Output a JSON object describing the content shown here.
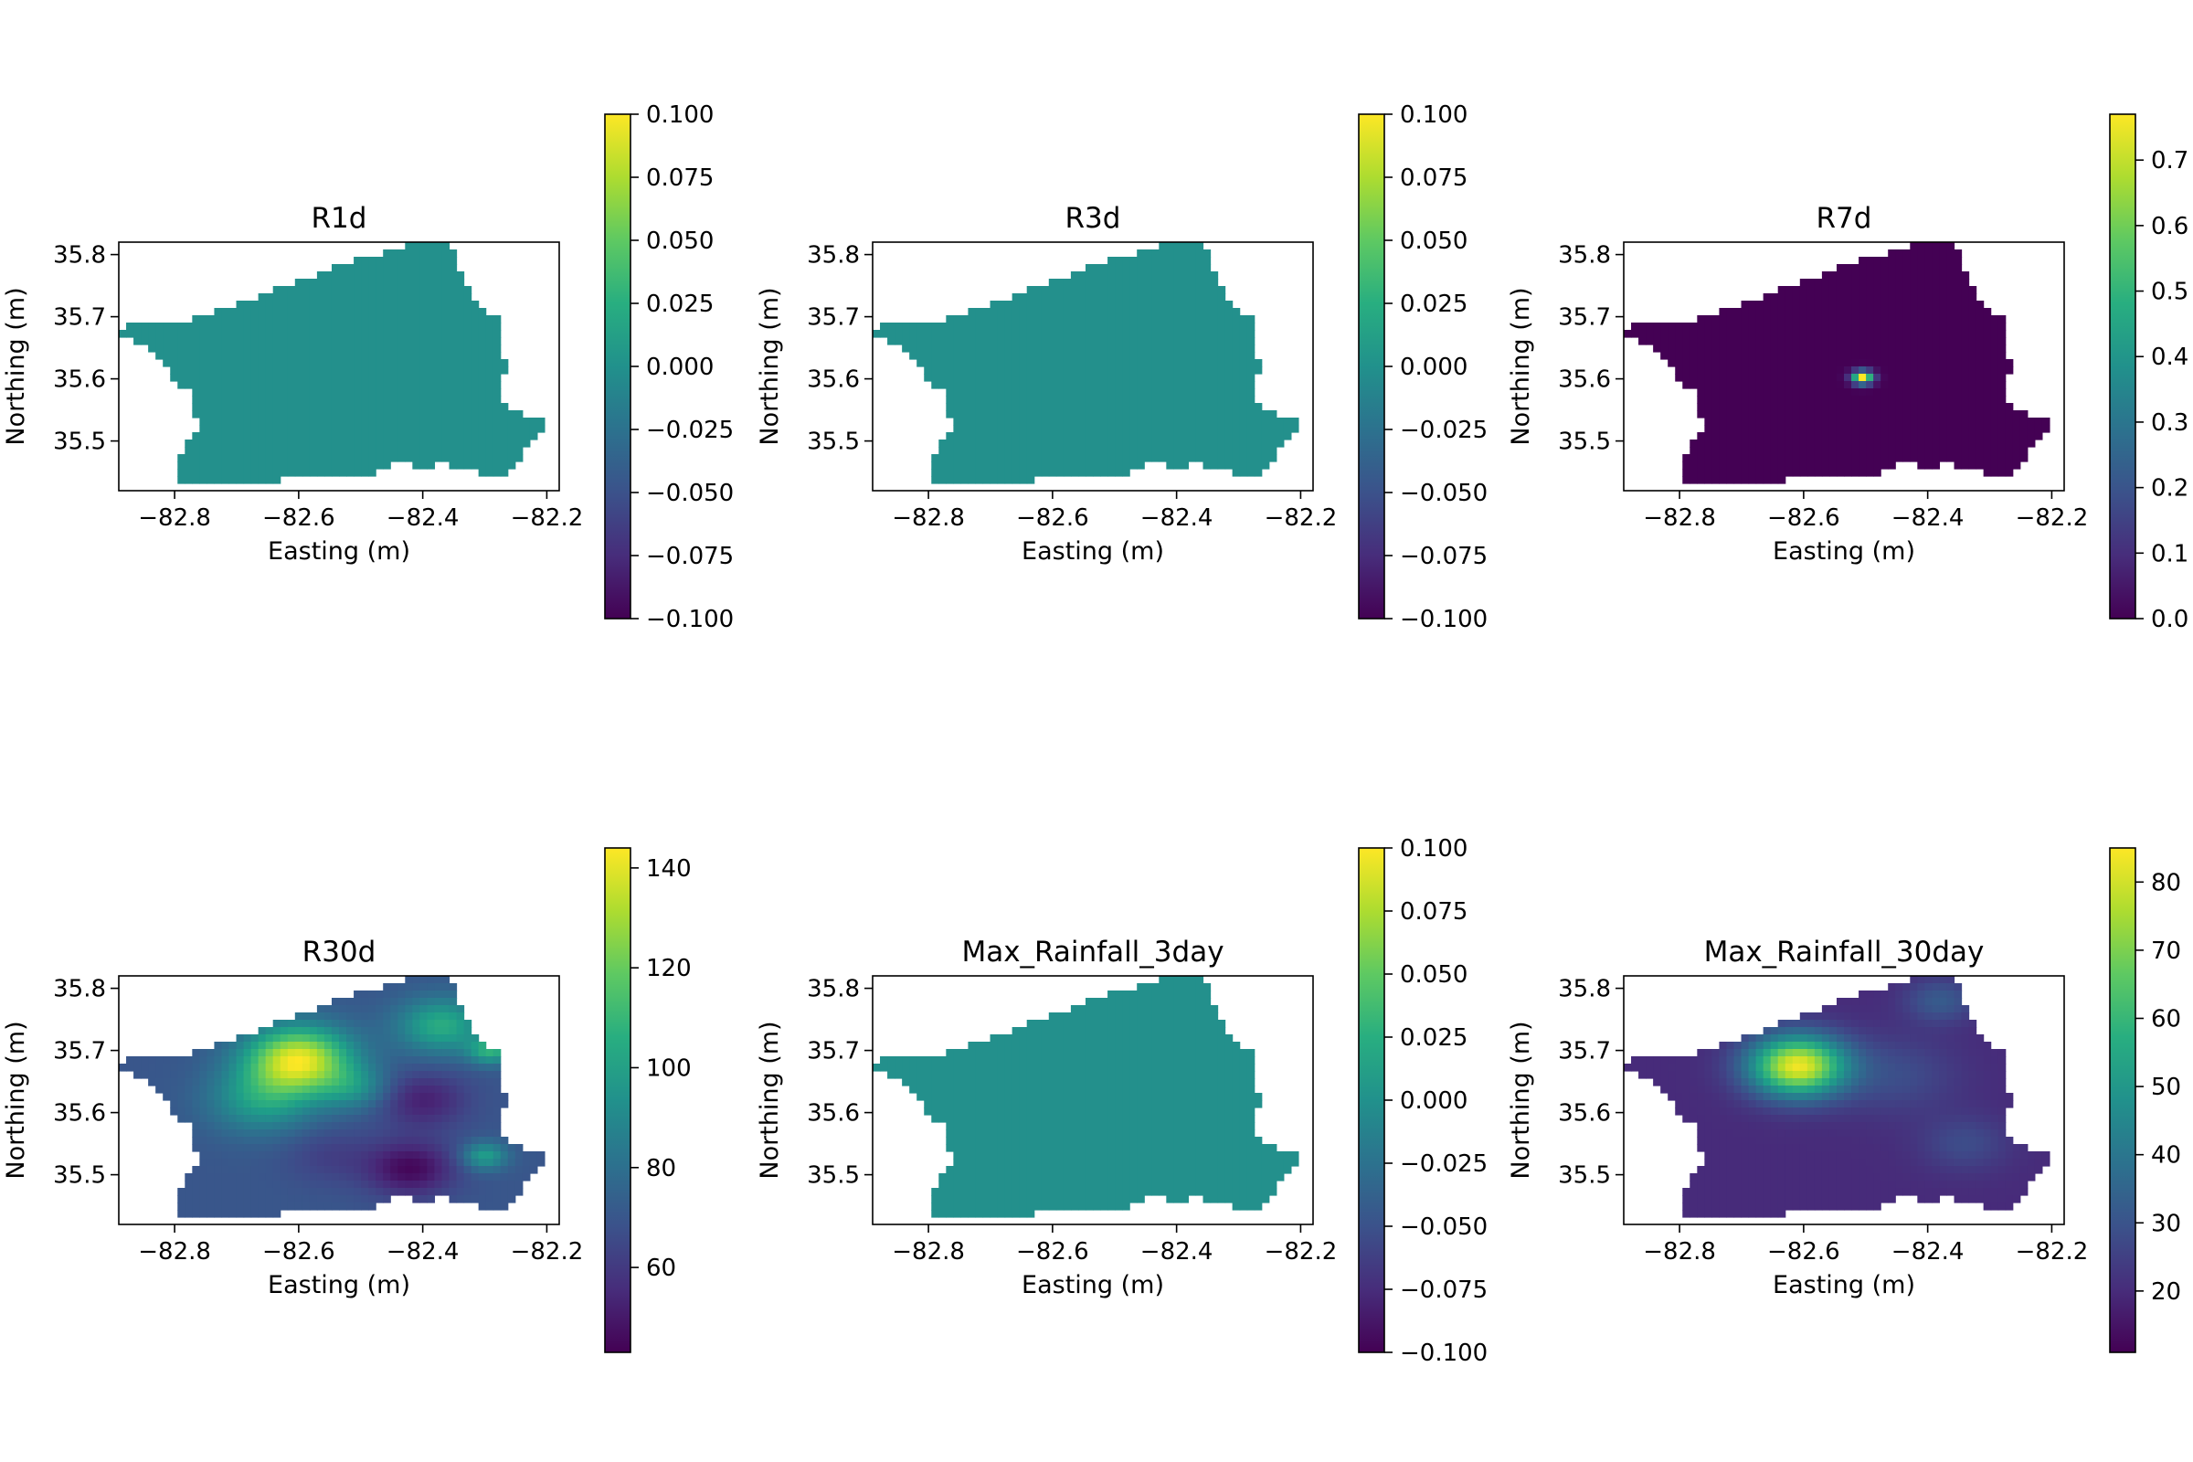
{
  "chart_data": [
    {
      "type": "heatmap",
      "title": "R1d",
      "xlabel": "Easting (m)",
      "ylabel": "Northing (m)",
      "xlim": [
        -82.89,
        -82.18
      ],
      "ylim": [
        35.42,
        35.82
      ],
      "x_ticks": [
        "−82.8",
        "−82.6",
        "−82.4",
        "−82.2"
      ],
      "y_ticks": [
        "35.5",
        "35.6",
        "35.7",
        "35.8"
      ],
      "colorbar": {
        "range": [
          -0.1,
          0.1
        ],
        "ticks": [
          "−0.100",
          "−0.075",
          "−0.050",
          "−0.025",
          "0.000",
          "0.025",
          "0.050",
          "0.075",
          "0.100"
        ]
      },
      "colormap": "viridis",
      "field": "uniform",
      "uniform_value": 0.0
    },
    {
      "type": "heatmap",
      "title": "R3d",
      "xlabel": "Easting (m)",
      "ylabel": "Northing (m)",
      "xlim": [
        -82.89,
        -82.18
      ],
      "ylim": [
        35.42,
        35.82
      ],
      "x_ticks": [
        "−82.8",
        "−82.6",
        "−82.4",
        "−82.2"
      ],
      "y_ticks": [
        "35.5",
        "35.6",
        "35.7",
        "35.8"
      ],
      "colorbar": {
        "range": [
          -0.1,
          0.1
        ],
        "ticks": [
          "−0.100",
          "−0.075",
          "−0.050",
          "−0.025",
          "0.000",
          "0.025",
          "0.050",
          "0.075",
          "0.100"
        ]
      },
      "colormap": "viridis",
      "field": "uniform",
      "uniform_value": 0.0
    },
    {
      "type": "heatmap",
      "title": "R7d",
      "xlabel": "Easting (m)",
      "ylabel": "Northing (m)",
      "xlim": [
        -82.89,
        -82.18
      ],
      "ylim": [
        35.42,
        35.82
      ],
      "x_ticks": [
        "−82.8",
        "−82.6",
        "−82.4",
        "−82.2"
      ],
      "y_ticks": [
        "35.5",
        "35.6",
        "35.7",
        "35.8"
      ],
      "colorbar": {
        "range": [
          0.0,
          0.77
        ],
        "ticks": [
          "0.0",
          "0.1",
          "0.2",
          "0.3",
          "0.4",
          "0.5",
          "0.6",
          "0.7"
        ]
      },
      "colormap": "viridis",
      "field": "peaks",
      "base": 0.0,
      "peaks": [
        {
          "x": -82.505,
          "y": 35.602,
          "value": 0.77,
          "radius": 0.012
        }
      ]
    },
    {
      "type": "heatmap",
      "title": "R30d",
      "xlabel": "Easting (m)",
      "ylabel": "Northing (m)",
      "xlim": [
        -82.89,
        -82.18
      ],
      "ylim": [
        35.42,
        35.82
      ],
      "x_ticks": [
        "−82.8",
        "−82.6",
        "−82.4",
        "−82.2"
      ],
      "y_ticks": [
        "35.5",
        "35.6",
        "35.7",
        "35.8"
      ],
      "colorbar": {
        "range": [
          43,
          144
        ],
        "ticks": [
          "60",
          "80",
          "100",
          "120",
          "140"
        ]
      },
      "colormap": "viridis",
      "field": "peaks",
      "base": 70,
      "peaks": [
        {
          "x": -82.6,
          "y": 35.685,
          "value": 70,
          "radius": 0.06
        },
        {
          "x": -82.66,
          "y": 35.62,
          "value": 28,
          "radius": 0.06
        },
        {
          "x": -82.37,
          "y": 35.74,
          "value": 35,
          "radius": 0.05
        },
        {
          "x": -82.29,
          "y": 35.7,
          "value": 35,
          "radius": 0.025
        },
        {
          "x": -82.51,
          "y": 35.64,
          "value": 20,
          "radius": 0.04
        },
        {
          "x": -82.42,
          "y": 35.51,
          "value": -25,
          "radius": 0.05
        },
        {
          "x": -82.4,
          "y": 35.62,
          "value": -18,
          "radius": 0.05
        },
        {
          "x": -82.55,
          "y": 35.53,
          "value": -8,
          "radius": 0.05
        },
        {
          "x": -82.3,
          "y": 35.53,
          "value": 30,
          "radius": 0.025
        }
      ]
    },
    {
      "type": "heatmap",
      "title": "Max_Rainfall_3day",
      "xlabel": "Easting (m)",
      "ylabel": "Northing (m)",
      "xlim": [
        -82.89,
        -82.18
      ],
      "ylim": [
        35.42,
        35.82
      ],
      "x_ticks": [
        "−82.8",
        "−82.6",
        "−82.4",
        "−82.2"
      ],
      "y_ticks": [
        "35.5",
        "35.6",
        "35.7",
        "35.8"
      ],
      "colorbar": {
        "range": [
          -0.1,
          0.1
        ],
        "ticks": [
          "−0.100",
          "−0.075",
          "−0.050",
          "−0.025",
          "0.000",
          "0.025",
          "0.050",
          "0.075",
          "0.100"
        ]
      },
      "colormap": "viridis",
      "field": "uniform",
      "uniform_value": 0.0
    },
    {
      "type": "heatmap",
      "title": "Max_Rainfall_30day",
      "xlabel": "Easting (m)",
      "ylabel": "Northing (m)",
      "xlim": [
        -82.89,
        -82.18
      ],
      "ylim": [
        35.42,
        35.82
      ],
      "x_ticks": [
        "−82.8",
        "−82.6",
        "−82.4",
        "−82.2"
      ],
      "y_ticks": [
        "35.5",
        "35.6",
        "35.7",
        "35.8"
      ],
      "colorbar": {
        "range": [
          11,
          85
        ],
        "ticks": [
          "20",
          "30",
          "40",
          "50",
          "60",
          "70",
          "80"
        ]
      },
      "colormap": "viridis",
      "field": "peaks",
      "base": 20,
      "peaks": [
        {
          "x": -82.61,
          "y": 35.675,
          "value": 63,
          "radius": 0.055
        },
        {
          "x": -82.45,
          "y": 35.66,
          "value": 8,
          "radius": 0.07
        },
        {
          "x": -82.38,
          "y": 35.78,
          "value": 12,
          "radius": 0.04
        },
        {
          "x": -82.34,
          "y": 35.55,
          "value": 8,
          "radius": 0.05
        }
      ]
    }
  ]
}
